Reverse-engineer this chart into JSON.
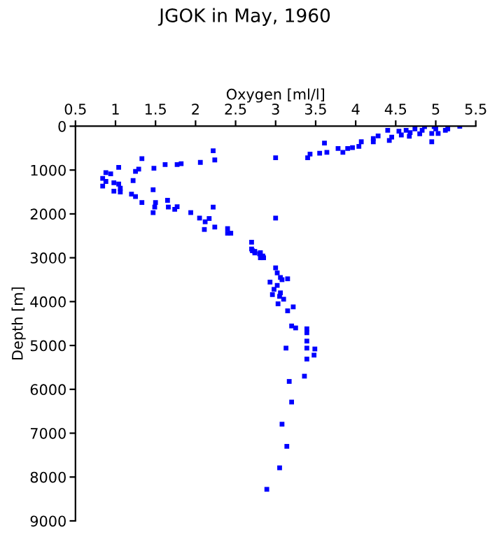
{
  "chart_data": {
    "type": "scatter",
    "title": "JGOK in May, 1960",
    "xlabel": "Oxygen [ml/l]",
    "ylabel": "Depth [m]",
    "x": [
      5.3,
      5.15,
      5.12,
      4.98,
      5.0,
      5.03,
      4.95,
      4.86,
      4.83,
      4.8,
      4.74,
      4.68,
      4.63,
      4.67,
      4.57,
      4.54,
      4.95,
      4.45,
      4.42,
      4.28,
      4.22,
      4.07,
      4.04,
      3.96,
      3.9,
      3.78,
      3.84,
      3.64,
      3.61,
      3.55,
      3.43,
      3.4,
      3.0,
      4.4,
      4.22,
      2.22,
      2.24,
      2.06,
      1.82,
      1.77,
      1.62,
      1.48,
      1.33,
      1.29,
      1.25,
      1.04,
      0.88,
      0.94,
      0.98,
      0.84,
      0.88,
      0.84,
      1.04,
      0.98,
      1.06,
      1.06,
      1.22,
      1.2,
      1.25,
      1.47,
      1.33,
      1.5,
      1.49,
      1.47,
      1.65,
      1.66,
      1.74,
      1.77,
      1.94,
      2.05,
      2.12,
      2.11,
      2.17,
      2.22,
      2.24,
      2.4,
      2.4,
      2.44,
      3.0,
      2.7,
      2.7,
      2.74,
      2.81,
      2.84,
      2.71,
      2.74,
      2.8,
      2.81,
      2.85,
      3.0,
      3.02,
      3.06,
      3.08,
      3.15,
      2.93,
      3.02,
      2.98,
      3.06,
      2.96,
      3.05,
      3.1,
      3.03,
      3.15,
      3.22,
      3.2,
      3.25,
      3.39,
      3.39,
      3.13,
      3.39,
      3.39,
      3.49,
      3.48,
      3.39,
      3.36,
      3.17,
      3.2,
      3.08,
      3.14,
      3.05,
      2.89
    ],
    "series": [
      {
        "color": "#0000ff",
        "values": [
          0,
          60,
          95,
          10,
          60,
          165,
          165,
          10,
          95,
          175,
          60,
          145,
          95,
          230,
          200,
          115,
          355,
          250,
          325,
          220,
          355,
          355,
          460,
          490,
          510,
          510,
          595,
          595,
          385,
          615,
          635,
          720,
          720,
          95,
          280,
          560,
          770,
          825,
          855,
          875,
          875,
          960,
          740,
          980,
          1030,
          940,
          1060,
          1085,
          1290,
          1190,
          1260,
          1365,
          1320,
          1480,
          1415,
          1500,
          1240,
          1550,
          1605,
          1450,
          1740,
          1740,
          1845,
          1970,
          1690,
          1845,
          1895,
          1835,
          1970,
          2095,
          2180,
          2355,
          2105,
          1845,
          2300,
          2335,
          2440,
          2440,
          2095,
          2645,
          2800,
          2855,
          2885,
          2960,
          2840,
          2890,
          2910,
          3000,
          3000,
          3230,
          3345,
          3450,
          3500,
          3480,
          3555,
          3630,
          3720,
          3800,
          3840,
          3880,
          3945,
          4050,
          4210,
          4120,
          4555,
          4600,
          4620,
          4710,
          5060,
          4900,
          5060,
          5080,
          5220,
          5310,
          5700,
          5820,
          6290,
          6795,
          7300,
          7790,
          8280
        ]
      }
    ],
    "xlim": [
      0.5,
      5.5
    ],
    "xticks": [
      0.5,
      1,
      1.5,
      2,
      2.5,
      3,
      3.5,
      4,
      4.5,
      5,
      5.5
    ],
    "ylim": [
      9000,
      0
    ],
    "yticks": [
      0,
      1000,
      2000,
      3000,
      4000,
      5000,
      6000,
      7000,
      8000,
      9000
    ],
    "marker": "square",
    "grid": false,
    "legend": false
  }
}
